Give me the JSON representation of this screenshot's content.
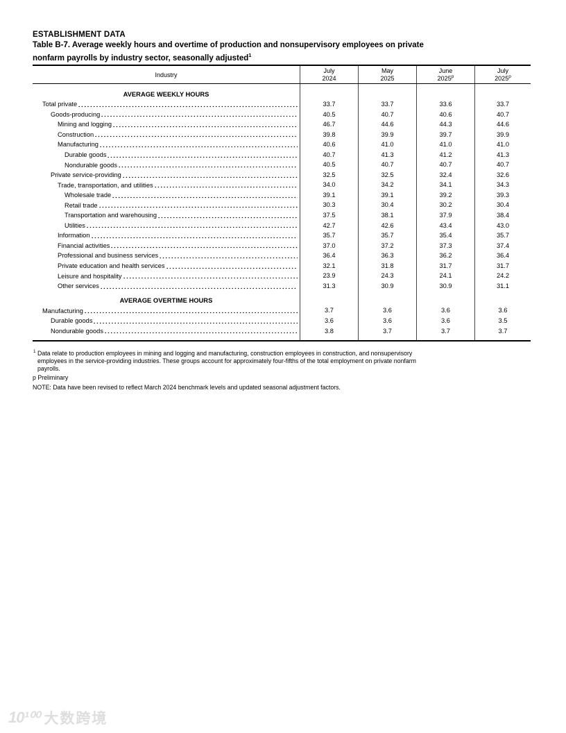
{
  "page": {
    "kicker": "ESTABLISHMENT DATA",
    "title_line1": "Table B-7. Average weekly hours and overtime of production and nonsupervisory employees on private",
    "title_line2": "nonfarm payrolls by industry sector, seasonally adjusted",
    "title_footnote_marker": "1"
  },
  "table": {
    "industry_header": "Industry",
    "columns": [
      {
        "month": "July",
        "year": "2024",
        "sup": ""
      },
      {
        "month": "May",
        "year": "2025",
        "sup": ""
      },
      {
        "month": "June",
        "year": "2025",
        "sup": "p"
      },
      {
        "month": "July",
        "year": "2025",
        "sup": "p"
      }
    ],
    "sections": [
      {
        "title": "AVERAGE WEEKLY HOURS",
        "rows": [
          {
            "label": "Total private",
            "indent": 0,
            "values": [
              "33.7",
              "33.7",
              "33.6",
              "33.7"
            ]
          },
          {
            "label": "Goods-producing",
            "indent": 1,
            "values": [
              "40.5",
              "40.7",
              "40.6",
              "40.7"
            ]
          },
          {
            "label": "Mining and logging",
            "indent": 2,
            "values": [
              "46.7",
              "44.6",
              "44.3",
              "44.6"
            ]
          },
          {
            "label": "Construction",
            "indent": 2,
            "values": [
              "39.8",
              "39.9",
              "39.7",
              "39.9"
            ]
          },
          {
            "label": "Manufacturing",
            "indent": 2,
            "values": [
              "40.6",
              "41.0",
              "41.0",
              "41.0"
            ]
          },
          {
            "label": "Durable goods",
            "indent": 3,
            "values": [
              "40.7",
              "41.3",
              "41.2",
              "41.3"
            ]
          },
          {
            "label": "Nondurable goods",
            "indent": 3,
            "values": [
              "40.5",
              "40.7",
              "40.7",
              "40.7"
            ]
          },
          {
            "label": "Private service-providing",
            "indent": 1,
            "values": [
              "32.5",
              "32.5",
              "32.4",
              "32.6"
            ]
          },
          {
            "label": "Trade, transportation, and utilities",
            "indent": 2,
            "values": [
              "34.0",
              "34.2",
              "34.1",
              "34.3"
            ]
          },
          {
            "label": "Wholesale trade",
            "indent": 3,
            "values": [
              "39.1",
              "39.1",
              "39.2",
              "39.3"
            ]
          },
          {
            "label": "Retail trade",
            "indent": 3,
            "values": [
              "30.3",
              "30.4",
              "30.2",
              "30.4"
            ]
          },
          {
            "label": "Transportation and warehousing",
            "indent": 3,
            "values": [
              "37.5",
              "38.1",
              "37.9",
              "38.4"
            ]
          },
          {
            "label": "Utilities",
            "indent": 3,
            "values": [
              "42.7",
              "42.6",
              "43.4",
              "43.0"
            ]
          },
          {
            "label": "Information",
            "indent": 2,
            "values": [
              "35.7",
              "35.7",
              "35.4",
              "35.7"
            ]
          },
          {
            "label": "Financial activities",
            "indent": 2,
            "values": [
              "37.0",
              "37.2",
              "37.3",
              "37.4"
            ]
          },
          {
            "label": "Professional and business services",
            "indent": 2,
            "values": [
              "36.4",
              "36.3",
              "36.2",
              "36.4"
            ]
          },
          {
            "label": "Private education and health services",
            "indent": 2,
            "values": [
              "32.1",
              "31.8",
              "31.7",
              "31.7"
            ]
          },
          {
            "label": "Leisure and hospitality",
            "indent": 2,
            "values": [
              "23.9",
              "24.3",
              "24.1",
              "24.2"
            ]
          },
          {
            "label": "Other services",
            "indent": 2,
            "values": [
              "31.3",
              "30.9",
              "30.9",
              "31.1"
            ]
          }
        ]
      },
      {
        "title": "AVERAGE OVERTIME HOURS",
        "rows": [
          {
            "label": "Manufacturing",
            "indent": 0,
            "values": [
              "3.7",
              "3.6",
              "3.6",
              "3.6"
            ]
          },
          {
            "label": "Durable goods",
            "indent": 1,
            "values": [
              "3.6",
              "3.6",
              "3.6",
              "3.5"
            ]
          },
          {
            "label": "Nondurable goods",
            "indent": 1,
            "values": [
              "3.8",
              "3.7",
              "3.7",
              "3.7"
            ]
          }
        ]
      }
    ]
  },
  "footnotes": {
    "fn1_marker": "1",
    "fn1_lines": [
      "Data relate to production employees in mining and logging and manufacturing, construction employees in construction, and nonsupervisory",
      "employees in the service-providing industries. These groups account for approximately four-fifths of the total employment on private nonfarm",
      "payrolls."
    ],
    "preliminary": "p Preliminary",
    "note": "NOTE: Data have been revised to reflect March 2024 benchmark levels and updated seasonal adjustment factors."
  },
  "watermark": {
    "logo": "10¹⁰⁰",
    "text": "大数跨境"
  }
}
